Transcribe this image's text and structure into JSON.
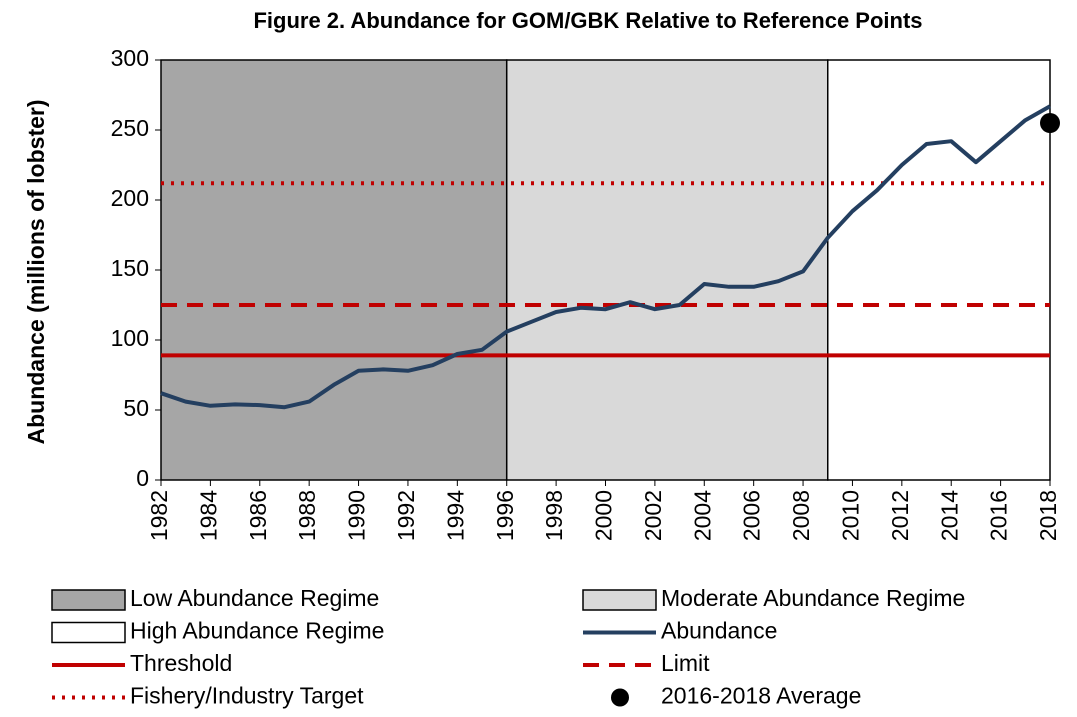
{
  "chart_data": {
    "type": "line",
    "title": "Figure 2. Abundance for GOM/GBK Relative to Reference Points",
    "y_label": "Abundance (millions of lobster)",
    "xlim": [
      1982,
      2018
    ],
    "xticks": [
      1982,
      1984,
      1986,
      1988,
      1990,
      1992,
      1994,
      1996,
      1998,
      2000,
      2002,
      2004,
      2006,
      2008,
      2010,
      2012,
      2014,
      2016,
      2018
    ],
    "ylim": [
      0,
      300
    ],
    "yticks": [
      0,
      50,
      100,
      150,
      200,
      250,
      300
    ],
    "regimes": [
      {
        "name": "Low Abundance Regime",
        "start": 1982,
        "end": 1996,
        "color": "#a6a6a6"
      },
      {
        "name": "Moderate Abundance Regime",
        "start": 1996,
        "end": 2009,
        "color": "#d9d9d9"
      },
      {
        "name": "High Abundance Regime",
        "start": 2009,
        "end": 2018,
        "color": "#ffffff"
      }
    ],
    "x": [
      1982,
      1983,
      1984,
      1985,
      1986,
      1987,
      1988,
      1989,
      1990,
      1991,
      1992,
      1993,
      1994,
      1995,
      1996,
      1997,
      1998,
      1999,
      2000,
      2001,
      2002,
      2003,
      2004,
      2005,
      2006,
      2007,
      2008,
      2009,
      2010,
      2011,
      2012,
      2013,
      2014,
      2015,
      2016,
      2017,
      2018
    ],
    "series": [
      {
        "name": "Abundance",
        "color": "#243f60",
        "values": [
          62,
          56,
          53,
          54,
          53.5,
          52,
          56,
          68,
          78,
          79,
          78,
          82,
          90,
          93,
          106,
          113,
          120,
          123,
          122,
          127,
          122,
          125,
          140,
          138,
          138,
          142,
          149,
          173,
          192,
          207,
          225,
          240,
          242,
          227,
          242,
          257,
          267
        ]
      }
    ],
    "reference_lines": [
      {
        "name": "Threshold",
        "value": 89,
        "color": "#c00000",
        "style": "solid"
      },
      {
        "name": "Limit",
        "value": 125,
        "color": "#c00000",
        "style": "dashed"
      },
      {
        "name": "Fishery/Industry Target",
        "value": 212,
        "color": "#c00000",
        "style": "dotted"
      }
    ],
    "points": [
      {
        "name": "2016-2018 Average",
        "x": 2018,
        "y": 255,
        "color": "#000000"
      }
    ]
  }
}
